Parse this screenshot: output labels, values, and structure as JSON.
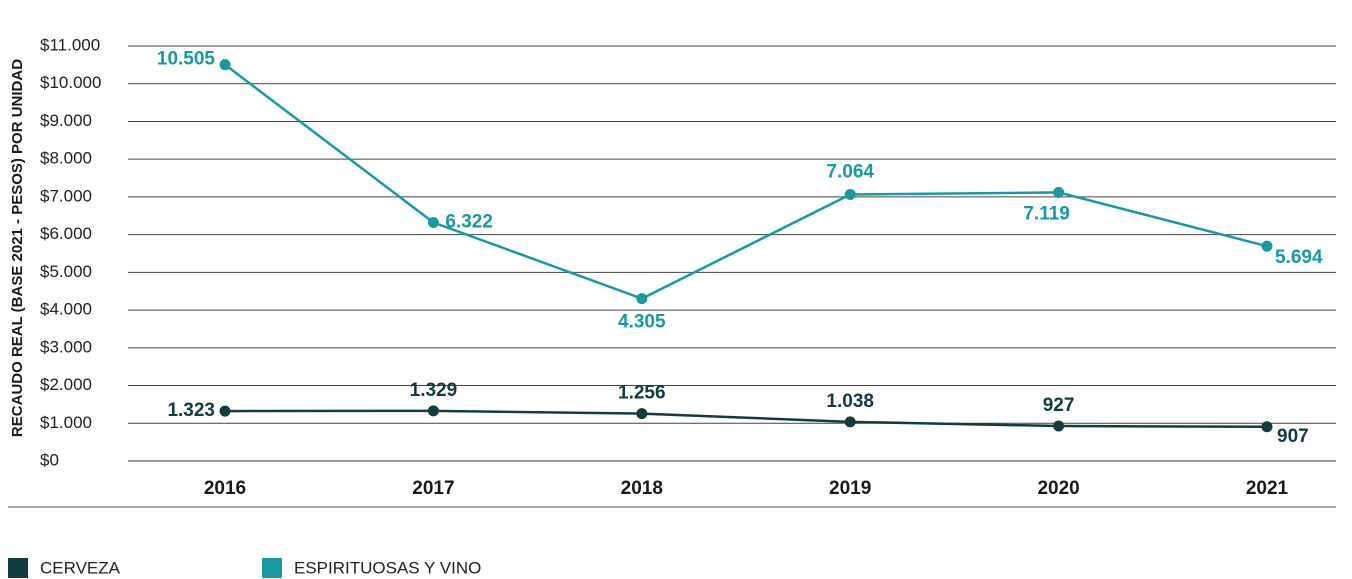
{
  "chart_data": {
    "type": "line",
    "y_label": "RECAUDO REAL (BASE 2021 - PESOS) POR UNIDAD",
    "categories": [
      "2016",
      "2017",
      "2018",
      "2019",
      "2020",
      "2021"
    ],
    "series": [
      {
        "name": "CERVEZA",
        "color": "#123c3f",
        "values": [
          1323,
          1329,
          1256,
          1038,
          927,
          907
        ],
        "value_labels": [
          "1.323",
          "1.329",
          "1.256",
          "1.038",
          "927",
          "907"
        ]
      },
      {
        "name": "ESPIRITUOSAS Y VINO",
        "color": "#1a9aa0",
        "values": [
          10505,
          6322,
          4305,
          7064,
          7119,
          5694
        ],
        "value_labels": [
          "10.505",
          "6.322",
          "4.305",
          "7.064",
          "7.119",
          "5.694"
        ]
      }
    ],
    "ylim": [
      0,
      11000
    ],
    "yticks": [
      {
        "value": 0,
        "label": "$0"
      },
      {
        "value": 1000,
        "label": "$1.000"
      },
      {
        "value": 2000,
        "label": "$2.000"
      },
      {
        "value": 3000,
        "label": "$3.000"
      },
      {
        "value": 4000,
        "label": "$4.000"
      },
      {
        "value": 5000,
        "label": "$5.000"
      },
      {
        "value": 6000,
        "label": "$6.000"
      },
      {
        "value": 7000,
        "label": "$7.000"
      },
      {
        "value": 8000,
        "label": "$8.000"
      },
      {
        "value": 9000,
        "label": "$9.000"
      },
      {
        "value": 10000,
        "label": "$10.000"
      },
      {
        "value": 11000,
        "label": "$11.000"
      }
    ],
    "grid": true
  }
}
